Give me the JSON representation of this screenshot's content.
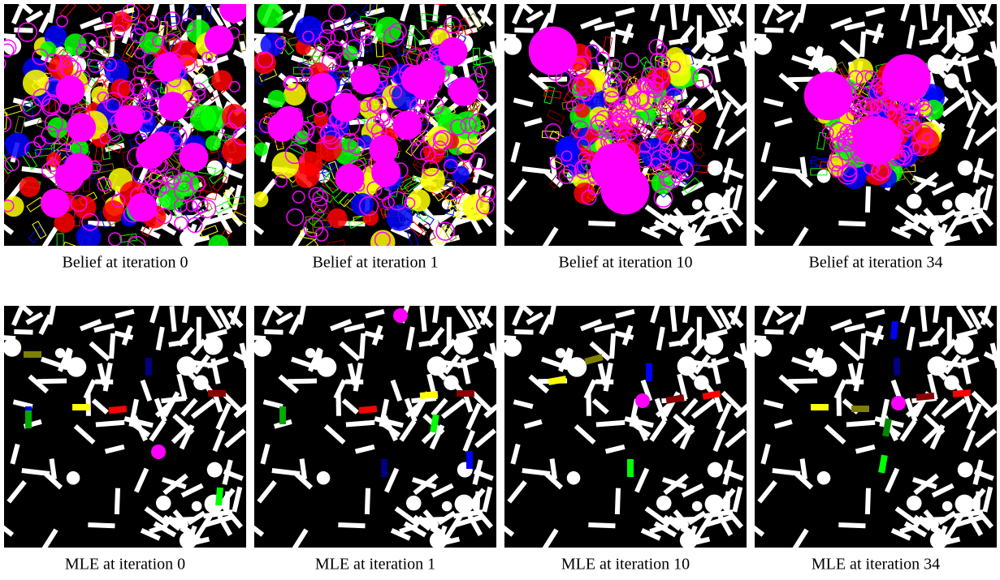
{
  "belief_row": {
    "captions": [
      "Belief at iteration 0",
      "Belief at iteration 1",
      "Belief at iteration 10",
      "Belief at iteration 34"
    ]
  },
  "mle_row": {
    "captions": [
      "MLE at iteration 0",
      "MLE at iteration 1",
      "MLE at iteration 10",
      "MLE at iteration 34"
    ]
  }
}
